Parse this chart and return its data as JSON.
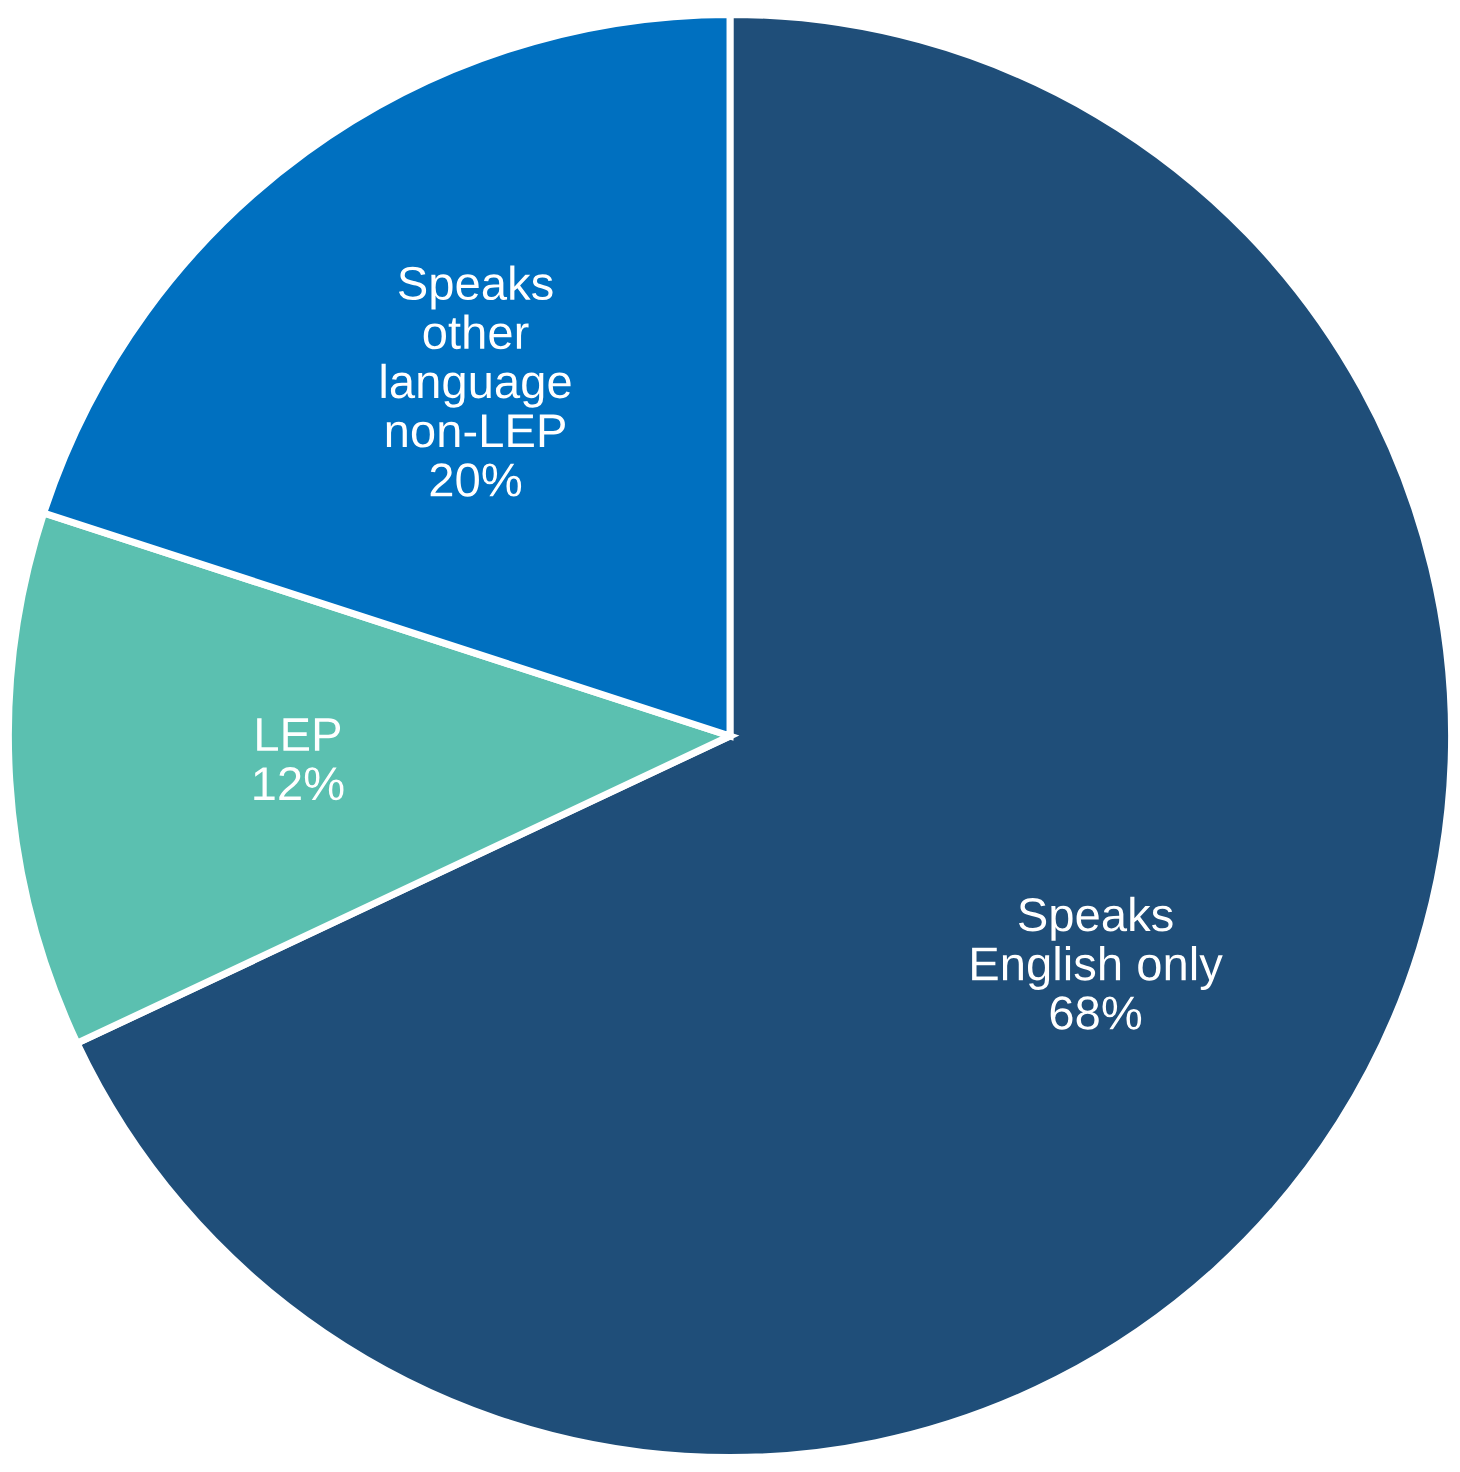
{
  "chart_data": {
    "type": "pie",
    "categories": [
      "Speaks\nEnglish only",
      "LEP",
      "Speaks\nother\nlanguage\nnon-LEP"
    ],
    "values": [
      68,
      12,
      20
    ],
    "value_labels": [
      "68%",
      "12%",
      "20%"
    ],
    "colors": [
      "#1f4e79",
      "#5bc0b0",
      "#0070c0"
    ]
  }
}
